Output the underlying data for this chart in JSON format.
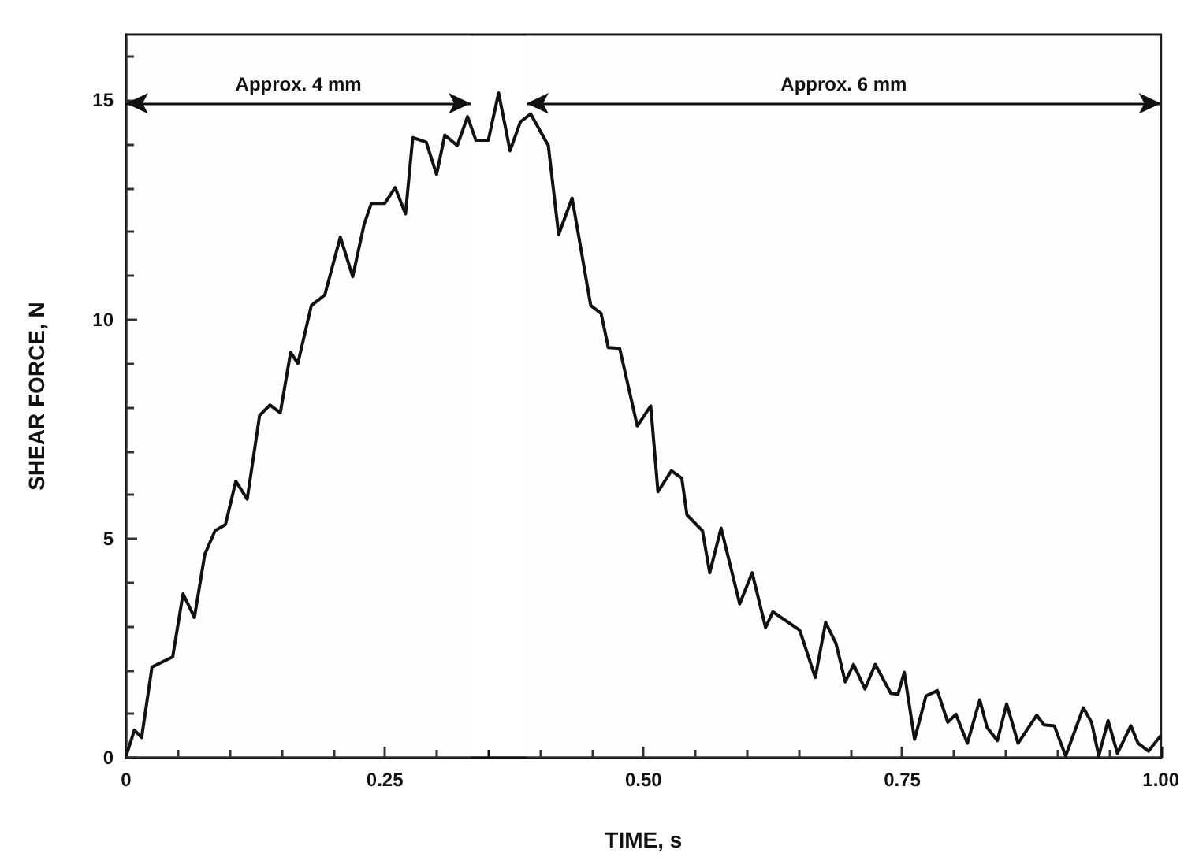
{
  "chart_data": {
    "type": "line",
    "xlabel": "TIME, s",
    "ylabel": "SHEAR FORCE, N",
    "xlim": [
      0,
      1
    ],
    "ylim": [
      0,
      16.5
    ],
    "xticks": [
      0,
      0.25,
      {
        "value": 0.5,
        "label": "0.50"
      },
      0.75,
      {
        "value": 1,
        "label": "1.00"
      }
    ],
    "yticks": [
      0,
      5,
      10,
      15
    ],
    "grid": false,
    "marker": "none",
    "line_style": "solid",
    "bands": [
      {
        "axis": "x",
        "from": 0,
        "to": 0.333,
        "label": "Approx. 4 mm",
        "color": "#f7f7f7"
      },
      {
        "axis": "x",
        "from": 0.387,
        "to": 1,
        "label": "Approx. 6 mm",
        "color": "#f7f7f7"
      }
    ],
    "series": [
      {
        "color": "#111111",
        "x": [
          0,
          0.008,
          0.015,
          0.025,
          0.045,
          0.055,
          0.066,
          0.076,
          0.086,
          0.096,
          0.106,
          0.117,
          0.129,
          0.139,
          0.149,
          0.159,
          0.166,
          0.179,
          0.192,
          0.207,
          0.219,
          0.23,
          0.237,
          0.25,
          0.26,
          0.27,
          0.277,
          0.29,
          0.3,
          0.308,
          0.32,
          0.33,
          0.338,
          0.35,
          0.36,
          0.371,
          0.381,
          0.391,
          0.408,
          0.418,
          0.431,
          0.449,
          0.459,
          0.466,
          0.477,
          0.494,
          0.507,
          0.514,
          0.527,
          0.537,
          0.542,
          0.557,
          0.564,
          0.575,
          0.593,
          0.605,
          0.618,
          0.625,
          0.651,
          0.666,
          0.676,
          0.686,
          0.695,
          0.703,
          0.714,
          0.724,
          0.739,
          0.746,
          0.752,
          0.762,
          0.773,
          0.784,
          0.794,
          0.802,
          0.813,
          0.825,
          0.832,
          0.842,
          0.851,
          0.862,
          0.88,
          0.887,
          0.897,
          0.908,
          0.925,
          0.933,
          0.94,
          0.949,
          0.958,
          0.971,
          0.978,
          0.988,
          1.0
        ],
        "values": [
          0.04,
          0.63,
          0.46,
          2.07,
          2.3,
          3.74,
          3.2,
          4.64,
          5.18,
          5.32,
          6.31,
          5.9,
          7.81,
          8.05,
          7.87,
          9.25,
          9.0,
          10.32,
          10.56,
          11.88,
          10.98,
          12.17,
          12.65,
          12.65,
          13.01,
          12.41,
          14.15,
          14.05,
          13.31,
          14.21,
          13.97,
          14.63,
          14.09,
          14.09,
          15.17,
          13.85,
          14.51,
          14.69,
          13.97,
          11.94,
          12.77,
          10.32,
          10.14,
          9.36,
          9.34,
          7.57,
          8.03,
          6.07,
          6.55,
          6.38,
          5.54,
          5.18,
          4.22,
          5.24,
          3.51,
          4.22,
          2.97,
          3.33,
          2.91,
          1.83,
          3.09,
          2.61,
          1.73,
          2.13,
          1.57,
          2.13,
          1.47,
          1.45,
          1.95,
          0.42,
          1.41,
          1.53,
          0.81,
          0.99,
          0.33,
          1.32,
          0.69,
          0.39,
          1.23,
          0.33,
          0.97,
          0.75,
          0.73,
          0.04,
          1.14,
          0.81,
          0.04,
          0.85,
          0.1,
          0.73,
          0.33,
          0.15,
          0.51
        ]
      }
    ]
  }
}
